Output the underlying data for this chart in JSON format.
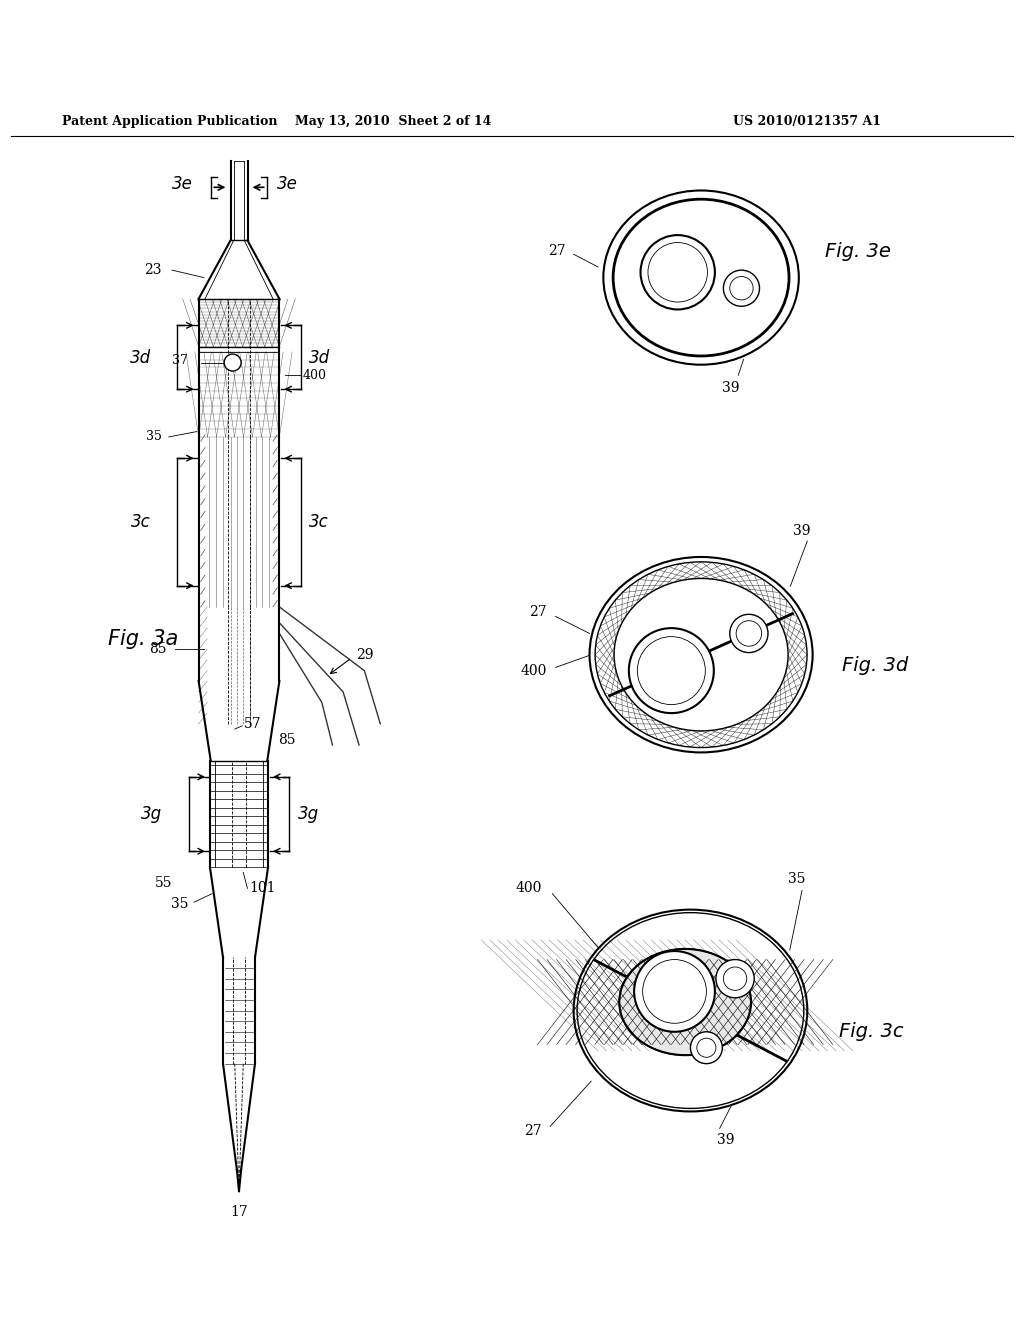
{
  "background_color": "#ffffff",
  "header_text": "Patent Application Publication",
  "header_date": "May 13, 2010  Sheet 2 of 14",
  "header_patent": "US 2010/0121357 A1"
}
